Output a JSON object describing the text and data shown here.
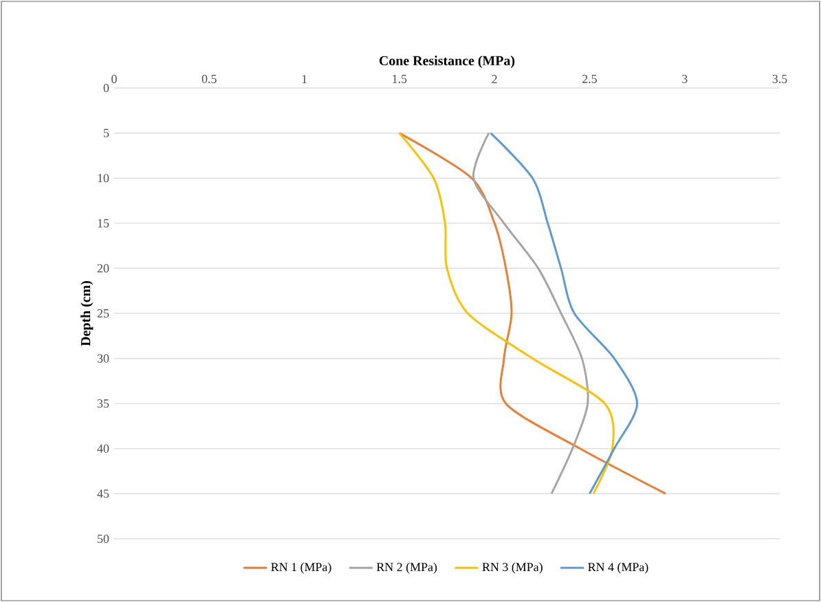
{
  "chart_data": {
    "type": "line",
    "xlabel": "Cone Resistance (MPa)",
    "ylabel": "Depth (cm)",
    "xlim": [
      0,
      3.5
    ],
    "xticks": [
      0,
      0.5,
      1,
      1.5,
      2,
      2.5,
      3,
      3.5
    ],
    "ylim": [
      50,
      0
    ],
    "yticks": [
      0,
      5,
      10,
      15,
      20,
      25,
      30,
      35,
      40,
      45,
      50
    ],
    "grid": "y",
    "legend": "bottom",
    "marker": "none",
    "line_style": "solid",
    "series": [
      {
        "name": "RN 1 (MPa)",
        "color": "#ed7d31",
        "x": [
          1.5,
          1.88,
          2.0,
          2.06,
          2.09,
          2.05,
          2.06,
          2.45,
          2.9
        ],
        "values": [
          5,
          10,
          15,
          20,
          25,
          30,
          35,
          40,
          45
        ]
      },
      {
        "name": "RN 2 (MPa)",
        "color": "#a5a5a5",
        "x": [
          1.97,
          1.89,
          2.05,
          2.23,
          2.35,
          2.46,
          2.49,
          2.41,
          2.3
        ],
        "values": [
          5,
          10,
          15,
          20,
          25,
          30,
          35,
          40,
          45
        ]
      },
      {
        "name": "RN 3 (MPa)",
        "color": "#ffc000",
        "x": [
          1.5,
          1.68,
          1.74,
          1.75,
          1.86,
          2.2,
          2.58,
          2.62,
          2.52
        ],
        "values": [
          5,
          10,
          15,
          20,
          25,
          30,
          35,
          40,
          45
        ]
      },
      {
        "name": "RN 4 (MPa)",
        "color": "#5b9bd5",
        "x": [
          1.98,
          2.2,
          2.28,
          2.35,
          2.42,
          2.63,
          2.75,
          2.63,
          2.5
        ],
        "values": [
          5,
          10,
          15,
          20,
          25,
          30,
          35,
          40,
          45
        ]
      }
    ]
  }
}
